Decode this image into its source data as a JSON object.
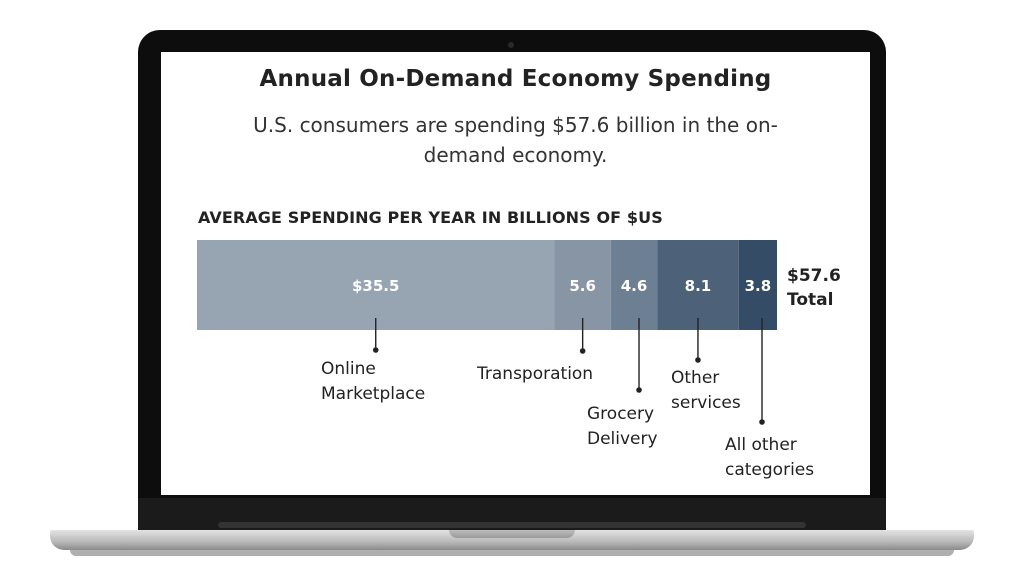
{
  "title": "Annual On-Demand Economy Spending",
  "subtitle": "U.S. consumers are spending $57.6 billion in the on-demand economy.",
  "total": {
    "value": "$57.6",
    "label": "Total"
  },
  "chart_data": {
    "type": "bar",
    "stacked": true,
    "orientation": "horizontal",
    "title": "Annual On-Demand Economy Spending",
    "subtitle": "U.S. consumers are spending $57.6 billion in the on-demand economy.",
    "xlabel": "AVERAGE SPENDING PER YEAR IN BILLIONS OF $US",
    "ylabel": "",
    "xlim": [
      0,
      57.6
    ],
    "grid": false,
    "total": 57.6,
    "segments": [
      {
        "category": [
          "Online",
          "Marketplace"
        ],
        "value": 35.5,
        "display": "$35.5",
        "color": "#97a5b3"
      },
      {
        "category": [
          "Transporation"
        ],
        "value": 5.6,
        "display": "5.6",
        "color": "#8795a5"
      },
      {
        "category": [
          "Grocery",
          "Delivery"
        ],
        "value": 4.6,
        "display": "4.6",
        "color": "#6d7f92"
      },
      {
        "category": [
          "Other",
          "services"
        ],
        "value": 8.1,
        "display": "8.1",
        "color": "#4d6178"
      },
      {
        "category": [
          "All other",
          "categories"
        ],
        "value": 3.8,
        "display": "3.8",
        "color": "#354c66"
      }
    ]
  }
}
